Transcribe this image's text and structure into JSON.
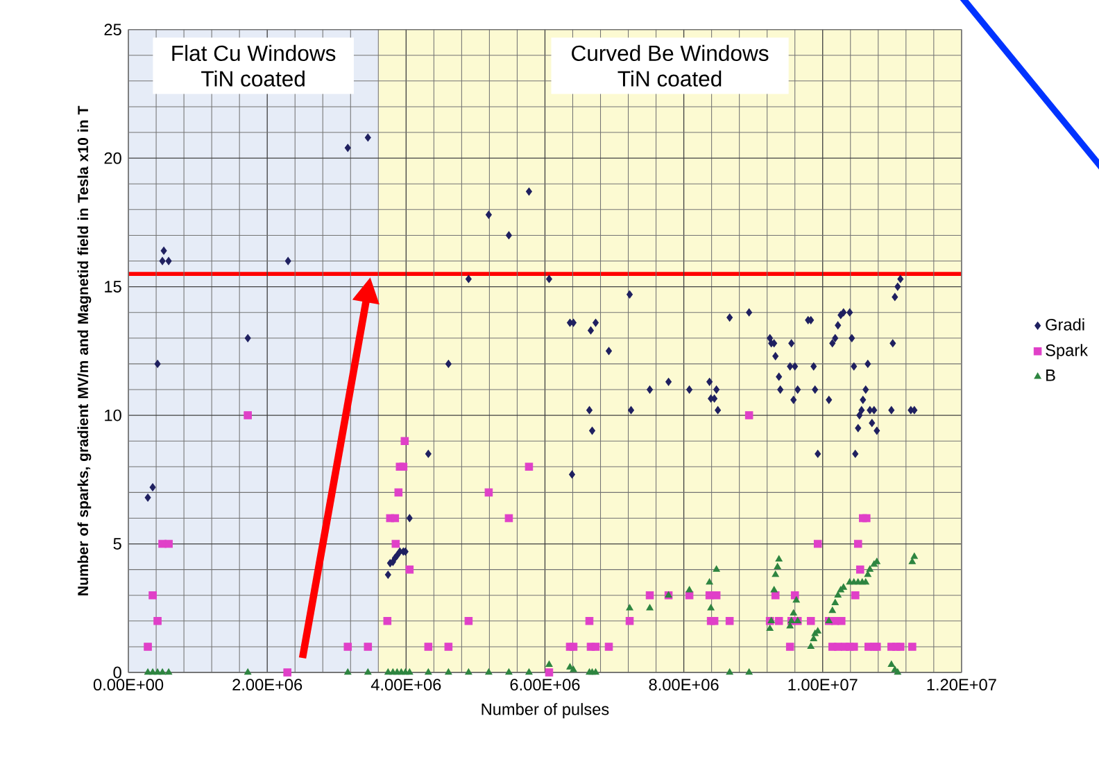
{
  "chart_data": {
    "type": "scatter",
    "xlabel": "Number of pulses",
    "ylabel": "Number of sparks, gradient MV/m and Magnetid field in Tesla x10 in T",
    "xlim": [
      0,
      12000000
    ],
    "ylim": [
      0,
      25
    ],
    "xticks": [
      {
        "value": 0,
        "label": "0.00E+00"
      },
      {
        "value": 2000000,
        "label": "2.00E+06"
      },
      {
        "value": 4000000,
        "label": "4.00E+06"
      },
      {
        "value": 6000000,
        "label": "6.00E+06"
      },
      {
        "value": 8000000,
        "label": "8.00E+06"
      },
      {
        "value": 10000000,
        "label": "1.00E+07"
      },
      {
        "value": 12000000,
        "label": "1.20E+07"
      }
    ],
    "yticks": [
      0,
      5,
      10,
      15,
      20,
      25
    ],
    "grid": true,
    "legend": "right",
    "bands": [
      {
        "axis": "x",
        "from": 0,
        "to": 3600000,
        "label": "Flat Cu Windows TiN coated",
        "color": "#e6ecf7"
      },
      {
        "axis": "x",
        "from": 3600000,
        "to": 12000000,
        "label": "Curved Be Windows TiN coated",
        "color": "#fcfad2"
      }
    ],
    "ref_lines": [
      {
        "axis": "y",
        "value": 15.5,
        "color": "#ff0000"
      }
    ],
    "series": [
      {
        "name": "Gradi",
        "color": "#1f2060",
        "marker": "diamond",
        "x": [
          280000,
          350000,
          420000,
          510000,
          490000,
          580000,
          1720000,
          2300000,
          3160000,
          3450000,
          3740000,
          3770000,
          3810000,
          3840000,
          3870000,
          3910000,
          3960000,
          3990000,
          4050000,
          4320000,
          4610000,
          4900000,
          5190000,
          5480000,
          5770000,
          6060000,
          6360000,
          6410000,
          6390000,
          6640000,
          6660000,
          6680000,
          6730000,
          6920000,
          7220000,
          7240000,
          7510000,
          7780000,
          8080000,
          8370000,
          8390000,
          8440000,
          8490000,
          8470000,
          8660000,
          8940000,
          9240000,
          9260000,
          9300000,
          9320000,
          9370000,
          9390000,
          9530000,
          9550000,
          9600000,
          9580000,
          9640000,
          9790000,
          9830000,
          9870000,
          9890000,
          9930000,
          10090000,
          10140000,
          10180000,
          10220000,
          10260000,
          10300000,
          10390000,
          10420000,
          10450000,
          10470000,
          10510000,
          10530000,
          10560000,
          10580000,
          10620000,
          10650000,
          10680000,
          10710000,
          10740000,
          10780000,
          10990000,
          11010000,
          11040000,
          11080000,
          11120000,
          11270000,
          11320000
        ],
        "values": [
          6.8,
          7.2,
          12.0,
          16.4,
          16.0,
          16.0,
          13.0,
          16.0,
          20.4,
          20.8,
          3.8,
          4.25,
          4.3,
          4.45,
          4.55,
          4.7,
          4.7,
          4.7,
          6.0,
          8.5,
          12.0,
          15.3,
          17.8,
          17.0,
          18.7,
          15.3,
          13.6,
          13.6,
          7.7,
          10.2,
          13.3,
          9.4,
          13.6,
          12.5,
          14.7,
          10.2,
          11.0,
          11.3,
          11.0,
          11.3,
          10.65,
          10.65,
          10.2,
          11.0,
          13.8,
          14.0,
          13.0,
          12.8,
          12.8,
          12.3,
          11.5,
          11.0,
          11.9,
          12.8,
          11.9,
          10.6,
          11.0,
          13.7,
          13.7,
          11.9,
          11.0,
          8.5,
          10.6,
          12.8,
          13.0,
          13.5,
          13.9,
          14.0,
          14.0,
          13.0,
          11.9,
          8.5,
          9.5,
          10.0,
          10.2,
          10.6,
          11.0,
          12.0,
          10.2,
          9.7,
          10.2,
          9.4,
          10.2,
          12.8,
          14.6,
          15.0,
          15.3,
          10.2,
          10.2
        ]
      },
      {
        "name": "Spark",
        "color": "#e040c8",
        "marker": "square",
        "x": [
          280000,
          350000,
          420000,
          490000,
          580000,
          1720000,
          2290000,
          3160000,
          3450000,
          3730000,
          3770000,
          3840000,
          3850000,
          3890000,
          3910000,
          3960000,
          3980000,
          4050000,
          4320000,
          4610000,
          4900000,
          5190000,
          5480000,
          5770000,
          6060000,
          6360000,
          6410000,
          6640000,
          6660000,
          6730000,
          6920000,
          7220000,
          7510000,
          7780000,
          8080000,
          8370000,
          8470000,
          8390000,
          8440000,
          8660000,
          8940000,
          9240000,
          9320000,
          9370000,
          9530000,
          9550000,
          9600000,
          9640000,
          9830000,
          9930000,
          10090000,
          10140000,
          10180000,
          10220000,
          10270000,
          10320000,
          10390000,
          10450000,
          10470000,
          10510000,
          10540000,
          10580000,
          10630000,
          10660000,
          10740000,
          10780000,
          10990000,
          11060000,
          11120000,
          11290000
        ],
        "values": [
          1,
          3,
          2,
          5,
          5,
          10,
          0,
          1,
          1,
          2,
          6,
          6,
          5,
          7,
          8,
          8,
          9,
          4,
          1,
          1,
          2,
          7,
          6,
          8,
          0,
          1,
          1,
          2,
          1,
          1,
          1,
          2,
          3,
          3,
          3,
          3,
          3,
          2,
          2,
          2,
          10,
          2,
          3,
          2,
          1,
          2,
          3,
          2,
          2,
          5,
          2,
          1,
          2,
          1,
          2,
          1,
          1,
          1,
          3,
          5,
          4,
          6,
          6,
          1,
          1,
          1,
          1,
          1,
          1,
          1
        ]
      },
      {
        "name": "B",
        "color": "#2e8540",
        "marker": "triangle",
        "x": [
          280000,
          350000,
          420000,
          490000,
          580000,
          1720000,
          3160000,
          3450000,
          3740000,
          3810000,
          3870000,
          3930000,
          3990000,
          4050000,
          4320000,
          4610000,
          4900000,
          5190000,
          5480000,
          5770000,
          6060000,
          6360000,
          6410000,
          6640000,
          6680000,
          6730000,
          7220000,
          7510000,
          7780000,
          8080000,
          8370000,
          8390000,
          8470000,
          8660000,
          8940000,
          9240000,
          9260000,
          9300000,
          9320000,
          9350000,
          9370000,
          9530000,
          9550000,
          9580000,
          9620000,
          9640000,
          9830000,
          9870000,
          9890000,
          9930000,
          10090000,
          10140000,
          10180000,
          10220000,
          10260000,
          10300000,
          10390000,
          10450000,
          10510000,
          10570000,
          10620000,
          10650000,
          10680000,
          10740000,
          10780000,
          10990000,
          11040000,
          11080000,
          11290000,
          11320000
        ],
        "values": [
          0,
          0,
          0,
          0,
          0,
          0,
          0,
          0,
          0,
          0,
          0,
          0,
          0,
          0,
          0,
          0,
          0,
          0,
          0,
          0,
          0.3,
          0.2,
          0.1,
          0,
          0,
          0,
          2.5,
          2.5,
          3.0,
          3.2,
          3.5,
          2.5,
          4.0,
          0,
          0,
          1.7,
          2.0,
          3.2,
          3.8,
          4.1,
          4.4,
          1.8,
          2.0,
          2.3,
          2.8,
          2.0,
          1.0,
          1.3,
          1.5,
          1.6,
          2.0,
          2.4,
          2.7,
          3.0,
          3.2,
          3.3,
          3.5,
          3.5,
          3.5,
          3.5,
          3.5,
          3.8,
          4.0,
          4.2,
          4.3,
          0.3,
          0.1,
          0,
          4.3,
          4.5
        ]
      }
    ]
  }
}
